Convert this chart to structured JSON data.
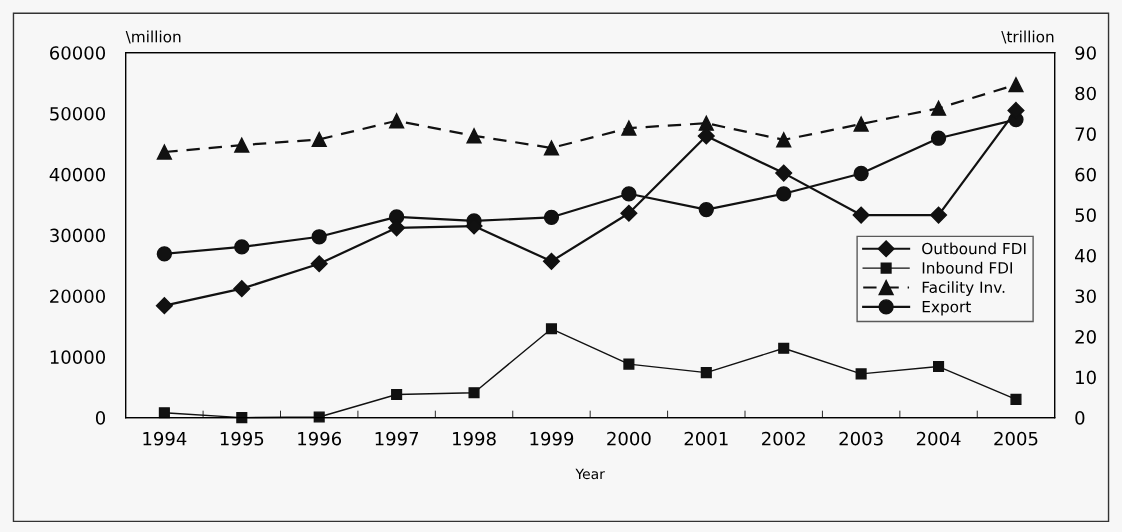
{
  "chart_data": {
    "type": "line",
    "xlabel": "Year",
    "ylabel": "\\million",
    "y2label": "\\trillion",
    "categories": [
      "1994",
      "1995",
      "1996",
      "1997",
      "1998",
      "1999",
      "2000",
      "2001",
      "2002",
      "2003",
      "2004",
      "2005"
    ],
    "series": [
      {
        "name": "Outbound FDI",
        "color": "#111111",
        "marker": "diamond",
        "line_style": "solid",
        "values": [
          18400,
          21200,
          25300,
          31200,
          31500,
          25700,
          33600,
          46300,
          40200,
          33300,
          33300,
          50500
        ]
      },
      {
        "name": "Inbound FDI",
        "color": "#111111",
        "marker": "square",
        "line_style": "solid",
        "values": [
          800,
          0,
          100,
          3800,
          4100,
          14600,
          8800,
          7400,
          11400,
          7200,
          8400,
          3000
        ]
      },
      {
        "name": "Facility Inv.",
        "color": "#111111",
        "marker": "triangle",
        "line_style": "dashed",
        "axis": "y2",
        "values": [
          65.5,
          67.2,
          68.6,
          73.2,
          69.5,
          66.5,
          71.4,
          72.6,
          68.5,
          72.4,
          76.3,
          82.1
        ]
      },
      {
        "name": "Export",
        "color": "#111111",
        "marker": "circle",
        "line_style": "solid",
        "axis": "y2",
        "values": [
          40.4,
          42.1,
          44.6,
          49.5,
          48.5,
          49.4,
          55.2,
          51.3,
          55.2,
          60.2,
          68.9,
          73.5
        ]
      }
    ],
    "ylim": [
      0,
      60000
    ],
    "yticks": [
      0,
      10000,
      20000,
      30000,
      40000,
      50000,
      60000
    ],
    "y2lim": [
      0,
      90
    ],
    "y2ticks": [
      0,
      10,
      20,
      30,
      40,
      50,
      60,
      70,
      80,
      90
    ],
    "legend": "right",
    "grid": false
  }
}
